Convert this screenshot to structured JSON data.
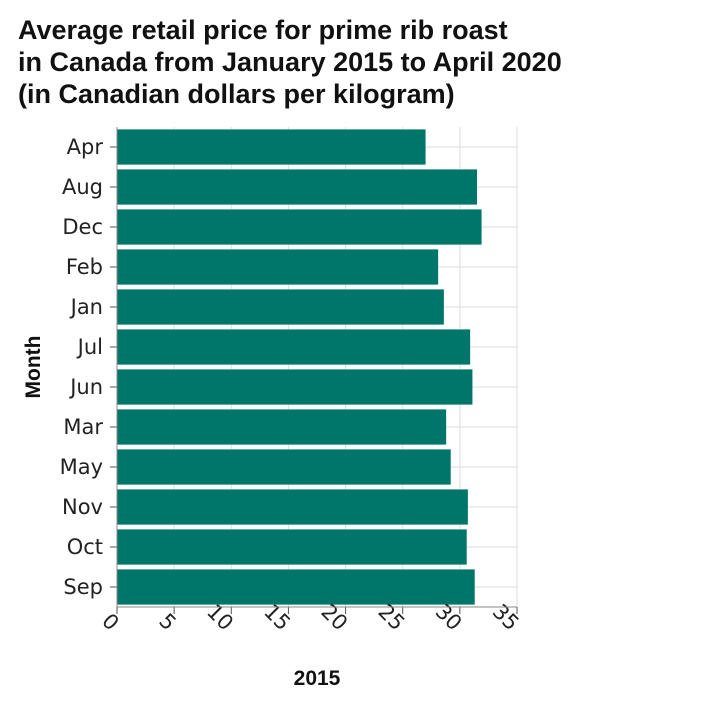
{
  "chart_data": {
    "type": "bar",
    "orientation": "horizontal",
    "title_lines": [
      "Average retail price for prime rib roast",
      "in Canada from January 2015 to April 2020",
      "(in Canadian dollars per kilogram)"
    ],
    "xlabel": "2015",
    "ylabel": "Month",
    "categories": [
      "Apr",
      "Aug",
      "Dec",
      "Feb",
      "Jan",
      "Jul",
      "Jun",
      "Mar",
      "May",
      "Nov",
      "Oct",
      "Sep"
    ],
    "values": [
      27.0,
      31.5,
      31.9,
      28.1,
      28.6,
      30.9,
      31.1,
      28.8,
      29.2,
      30.7,
      30.6,
      31.3
    ],
    "xlim": [
      0,
      35
    ],
    "xticks": [
      0,
      5,
      10,
      15,
      20,
      25,
      30,
      35
    ],
    "grid": true,
    "bar_color": "#00766a",
    "grid_color": "#dddddd"
  }
}
